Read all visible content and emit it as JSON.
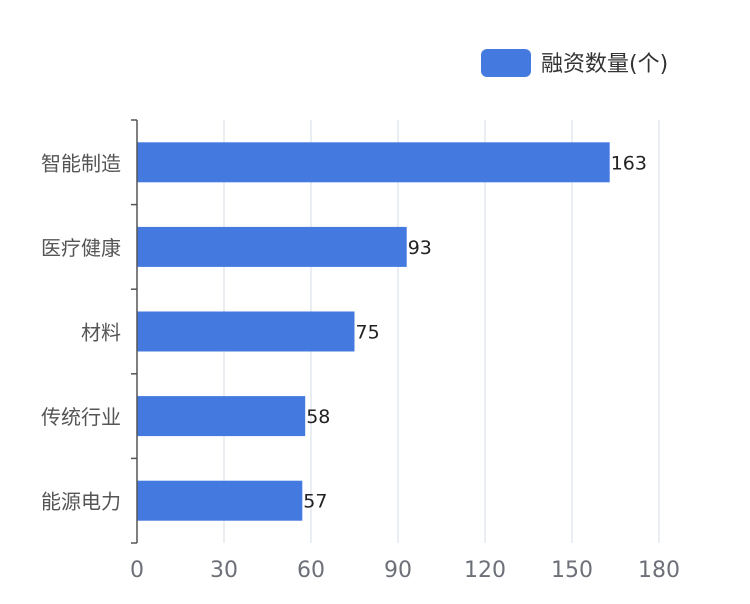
{
  "chart_data": {
    "type": "bar",
    "orientation": "horizontal",
    "categories": [
      "智能制造",
      "医疗健康",
      "材料",
      "传统行业",
      "能源电力"
    ],
    "series": [
      {
        "name": "融资数量(个)",
        "values": [
          163,
          93,
          75,
          58,
          57
        ],
        "color": "#4479e0"
      }
    ],
    "xlim": [
      0,
      180
    ],
    "x_ticks": [
      0,
      30,
      60,
      90,
      120,
      150,
      180
    ],
    "grid": "vertical",
    "legend": "top-right",
    "data_labels": true
  },
  "colors": {
    "bar": "#4479e0",
    "grid": "#d5dde6",
    "axis": "#555555",
    "tick_label": "#6e7079",
    "category_label": "#555555",
    "value_label": "#222222",
    "legend_text": "#333333"
  }
}
